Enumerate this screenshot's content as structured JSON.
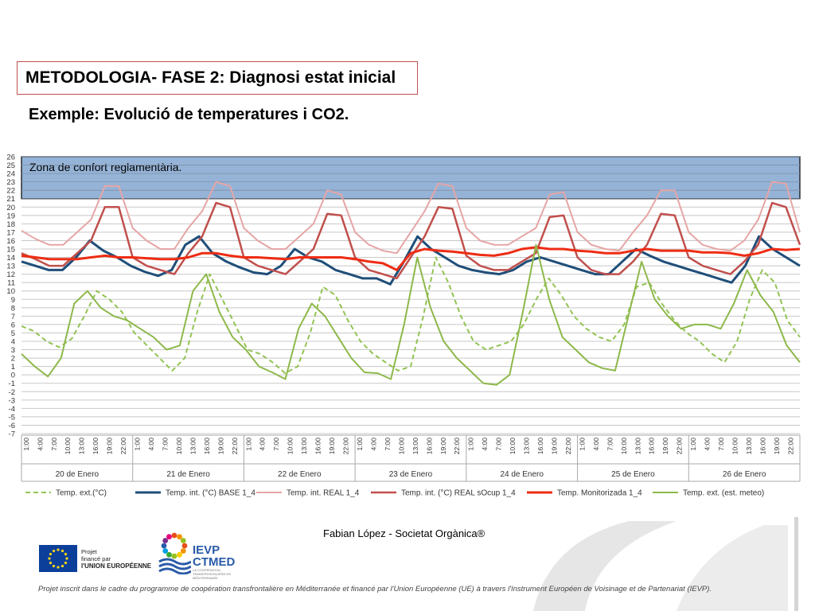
{
  "slide": {
    "title": "METODOLOGIA- FASE 2: Diagnosi estat inicial",
    "subtitle": "Exemple: Evolució de temperatures i CO2.",
    "author": "Fabian López -  Societat Orgànica®",
    "footer_note": "Projet inscrit dans le cadre du programme de coopération transfrontalière en Méditerranée et financé par l'Union Européenne (UE) à travers l'Instrument Européen de Voisinage et de Partenariat (IEVP).",
    "eu_text": [
      "Projet",
      "financé par",
      "l'UNION EUROPÉENNE"
    ],
    "ievp_name": [
      "IEVP",
      "CTMED"
    ],
    "ievp_sub": "LA COOPÉRATION TRANSFRONTALIÈRE EN MÉDITERRANÉE"
  },
  "chart_data": {
    "type": "line",
    "comfort_zone": {
      "label": "Zona de confort reglamentària.",
      "y_from": 21,
      "y_to": 26,
      "color": "#95b3d7"
    },
    "ylim": [
      -7,
      26
    ],
    "yticks": [
      -7,
      -6,
      -5,
      -4,
      -3,
      -2,
      -1,
      0,
      1,
      2,
      3,
      4,
      5,
      6,
      7,
      8,
      9,
      10,
      11,
      12,
      13,
      14,
      15,
      16,
      17,
      18,
      19,
      20,
      21,
      22,
      23,
      24,
      25,
      26
    ],
    "hour_ticks": [
      "1:00",
      "4:00",
      "7:00",
      "10:00",
      "13:00",
      "16:00",
      "19:00",
      "22:00"
    ],
    "days": [
      "20 de Enero",
      "21 de Enero",
      "22 de Enero",
      "23 de Enero",
      "24 de Enero",
      "25 de Enero",
      "26 de Enero"
    ],
    "x_start": "2024-01-20 00:00",
    "x_step_hours": 3,
    "series": [
      {
        "name": "Temp. ext.(°C)",
        "color": "#92c353",
        "dash": true,
        "width": 2,
        "values": [
          5.8,
          5.2,
          4.0,
          3.3,
          4.3,
          7.0,
          10.0,
          9.0,
          7.5,
          5.0,
          3.5,
          2.0,
          0.5,
          2.0,
          7.5,
          12.0,
          9.0,
          6.0,
          3.0,
          2.5,
          1.5,
          0.2,
          1.0,
          5.0,
          10.5,
          9.5,
          6.5,
          4.0,
          2.5,
          1.5,
          0.5,
          1.0,
          7.0,
          14.0,
          11.0,
          7.0,
          4.0,
          3.0,
          3.5,
          4.0,
          6.0,
          9.0,
          11.5,
          9.5,
          7.0,
          5.5,
          4.5,
          4.0,
          6.0,
          10.5,
          11.0,
          8.5,
          6.5,
          5.0,
          4.0,
          2.5,
          1.5,
          4.0,
          9.0,
          12.5,
          11.0,
          6.5,
          4.5
        ]
      },
      {
        "name": "Temp. int. (°C) BASE 1_4",
        "color": "#1f4e79",
        "dash": false,
        "width": 3,
        "values": [
          13.5,
          13.0,
          12.5,
          12.5,
          14.0,
          16.0,
          14.8,
          14.0,
          13.0,
          12.3,
          11.8,
          12.5,
          15.5,
          16.5,
          14.5,
          13.5,
          12.8,
          12.2,
          12.0,
          13.0,
          15.0,
          14.0,
          13.5,
          12.5,
          12.0,
          11.5,
          11.5,
          10.8,
          13.5,
          16.5,
          15.0,
          14.0,
          13.0,
          12.5,
          12.2,
          12.0,
          12.5,
          13.5,
          14.0,
          13.5,
          13.0,
          12.5,
          12.0,
          12.0,
          13.5,
          15.0,
          14.2,
          13.5,
          13.0,
          12.5,
          12.0,
          11.5,
          11.0,
          13.0,
          16.5,
          15.0,
          14.0,
          13.0
        ]
      },
      {
        "name": "Temp. int. REAL 1_4",
        "color": "#e6a5a5",
        "dash": false,
        "width": 2,
        "values": [
          17.2,
          16.2,
          15.5,
          15.5,
          17.0,
          18.5,
          22.5,
          22.5,
          17.5,
          16.0,
          15.0,
          15.0,
          17.5,
          19.5,
          23.0,
          22.5,
          17.5,
          16.0,
          15.0,
          15.0,
          16.5,
          18.0,
          22.0,
          21.5,
          17.0,
          15.5,
          14.8,
          14.5,
          17.0,
          19.5,
          22.8,
          22.5,
          17.5,
          16.0,
          15.5,
          15.5,
          16.5,
          17.5,
          21.5,
          21.8,
          17.0,
          15.5,
          15.0,
          14.8,
          17.0,
          19.0,
          22.0,
          22.0,
          17.0,
          15.5,
          15.0,
          14.8,
          16.0,
          18.5,
          23.0,
          22.8,
          17.0
        ]
      },
      {
        "name": "Temp. int. (°C) REAL sOcup 1_4",
        "color": "#c0504d",
        "dash": false,
        "width": 2.5,
        "values": [
          14.5,
          13.8,
          13.0,
          13.0,
          14.5,
          16.0,
          20.0,
          20.0,
          14.0,
          13.0,
          12.5,
          12.0,
          14.5,
          16.5,
          20.5,
          20.0,
          14.0,
          13.0,
          12.5,
          12.0,
          13.5,
          15.0,
          19.2,
          19.0,
          14.0,
          12.5,
          12.0,
          11.5,
          14.0,
          16.5,
          20.0,
          19.8,
          14.2,
          13.0,
          12.5,
          12.5,
          13.5,
          14.5,
          18.8,
          19.0,
          14.0,
          12.5,
          12.0,
          12.0,
          13.5,
          15.5,
          19.2,
          19.0,
          14.0,
          13.0,
          12.5,
          12.0,
          13.5,
          15.5,
          20.5,
          20.0,
          15.5
        ]
      },
      {
        "name": "Temp. Monitorizada 1_4",
        "color": "#ee2c13",
        "dash": false,
        "width": 3,
        "values": [
          14.2,
          14.0,
          13.8,
          13.8,
          13.8,
          14.0,
          14.2,
          14.0,
          14.0,
          13.9,
          13.8,
          13.8,
          14.0,
          14.5,
          14.5,
          14.2,
          14.0,
          14.0,
          13.9,
          13.8,
          14.0,
          14.0,
          14.0,
          14.0,
          13.8,
          13.5,
          13.3,
          12.5,
          14.5,
          15.0,
          14.8,
          14.7,
          14.5,
          14.3,
          14.2,
          14.5,
          15.0,
          15.2,
          15.0,
          15.0,
          14.8,
          14.7,
          14.5,
          14.5,
          14.8,
          15.0,
          14.8,
          14.8,
          14.8,
          14.6,
          14.6,
          14.5,
          14.2,
          14.5,
          15.0,
          14.9,
          15.0
        ]
      },
      {
        "name": "Temp. ext. (est. meteo)",
        "color": "#8db84a",
        "dash": false,
        "width": 2,
        "values": [
          2.5,
          1.0,
          -0.2,
          2.0,
          8.5,
          10.0,
          8.0,
          7.0,
          6.5,
          5.5,
          4.5,
          3.0,
          3.5,
          10.0,
          12.0,
          7.5,
          4.5,
          3.0,
          1.0,
          0.3,
          -0.5,
          5.5,
          8.5,
          7.0,
          4.5,
          2.0,
          0.3,
          0.2,
          -0.5,
          6.0,
          14.0,
          8.0,
          4.0,
          2.0,
          0.5,
          -1.0,
          -1.2,
          0.0,
          7.5,
          15.5,
          9.0,
          4.5,
          3.0,
          1.5,
          0.8,
          0.5,
          7.0,
          13.5,
          9.0,
          7.0,
          5.5,
          6.0,
          6.0,
          5.5,
          8.5,
          12.5,
          9.5,
          7.5,
          3.5,
          1.5
        ]
      }
    ],
    "legend_position": "bottom"
  }
}
